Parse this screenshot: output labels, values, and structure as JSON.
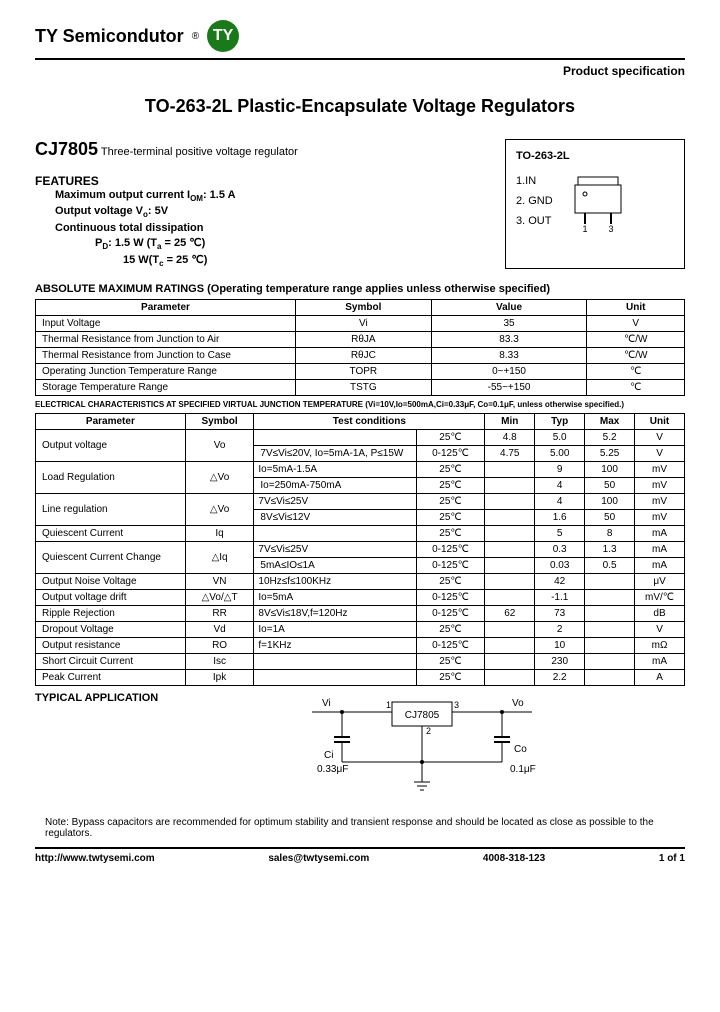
{
  "header": {
    "company": "TY Semicondutor",
    "logo_text": "TY",
    "logo_bg": "#1a7a1a",
    "spec_label": "Product specification"
  },
  "title": "TO-263-2L Plastic-Encapsulate Voltage Regulators",
  "part": {
    "number": "CJ7805",
    "desc": "Three-terminal positive voltage regulator"
  },
  "features": {
    "head": "FEATURES",
    "l1": "Maximum output current   I",
    "l1sub": "OM",
    "l1end": ": 1.5 A",
    "l2": "Output voltage V",
    "l2sub": "o",
    "l2end": ": 5V",
    "l3": "Continuous total dissipation",
    "l4": "P",
    "l4sub": "D",
    "l4end": ":   1.5  W (T",
    "l4sub2": "a",
    "l4end2": " = 25 ℃)",
    "l5": "15 W(T",
    "l5sub": "c",
    "l5end": " = 25 ℃)"
  },
  "package": {
    "title": "TO-263-2L",
    "pin1": "1.IN",
    "pin2": "2. GND",
    "pin3": "3. OUT",
    "pin_lbl1": "1",
    "pin_lbl3": "3"
  },
  "abs_max": {
    "head": "ABSOLUTE MAXIMUM RATINGS (Operating temperature range applies unless otherwise specified)",
    "cols": [
      "Parameter",
      "Symbol",
      "Value",
      "Unit"
    ],
    "rows": [
      [
        "Input Voltage",
        "Vi",
        "35",
        "V"
      ],
      [
        "Thermal Resistance from Junction to Air",
        "RθJA",
        "83.3",
        "℃/W"
      ],
      [
        "Thermal Resistance from Junction to Case",
        "RθJC",
        "8.33",
        "℃/W"
      ],
      [
        "Operating Junction Temperature Range",
        "TOPR",
        "0~+150",
        "℃"
      ],
      [
        "Storage Temperature Range",
        "TSTG",
        "-55~+150",
        "℃"
      ]
    ]
  },
  "elec_note": "ELECTRICAL CHARACTERISTICS AT SPECIFIED VIRTUAL JUNCTION TEMPERATURE (Vi=10V,Io=500mA,Ci=0.33μF, Co=0.1μF, unless otherwise specified.)",
  "elec": {
    "cols": [
      "Parameter",
      "Symbol",
      "Test conditions",
      "",
      "Min",
      "Typ",
      "Max",
      "Unit"
    ],
    "rows": [
      {
        "param": "Output voltage",
        "sym": "Vo",
        "cond1": "",
        "cond2": "25℃",
        "min": "4.8",
        "typ": "5.0",
        "max": "5.2",
        "unit": "V",
        "rowspan": 2
      },
      {
        "cond1": "7V≤Vi≤20V, Io=5mA-1A, P≤15W",
        "cond2": "0-125℃",
        "min": "4.75",
        "typ": "5.00",
        "max": "5.25",
        "unit": "V"
      },
      {
        "param": "Load Regulation",
        "sym": "△Vo",
        "cond1": "Io=5mA-1.5A",
        "cond2": "25℃",
        "min": "",
        "typ": "9",
        "max": "100",
        "unit": "mV",
        "rowspan": 2
      },
      {
        "cond1": "Io=250mA-750mA",
        "cond2": "25℃",
        "min": "",
        "typ": "4",
        "max": "50",
        "unit": "mV"
      },
      {
        "param": "Line regulation",
        "sym": "△Vo",
        "cond1": "7V≤Vi≤25V",
        "cond2": "25℃",
        "min": "",
        "typ": "4",
        "max": "100",
        "unit": "mV",
        "rowspan": 2
      },
      {
        "cond1": "8V≤Vi≤12V",
        "cond2": "25℃",
        "min": "",
        "typ": "1.6",
        "max": "50",
        "unit": "mV"
      },
      {
        "param": "Quiescent Current",
        "sym": "Iq",
        "cond1": "",
        "cond2": "25℃",
        "min": "",
        "typ": "5",
        "max": "8",
        "unit": "mA"
      },
      {
        "param": "Quiescent Current Change",
        "sym": "△Iq",
        "cond1": "7V≤Vi≤25V",
        "cond2": "0-125℃",
        "min": "",
        "typ": "0.3",
        "max": "1.3",
        "unit": "mA",
        "rowspan": 2
      },
      {
        "cond1": "5mA≤IO≤1A",
        "cond2": "0-125℃",
        "min": "",
        "typ": "0.03",
        "max": "0.5",
        "unit": "mA"
      },
      {
        "param": "Output Noise Voltage",
        "sym": "VN",
        "cond1": "10Hz≤f≤100KHz",
        "cond2": "25℃",
        "min": "",
        "typ": "42",
        "max": "",
        "unit": "μV"
      },
      {
        "param": "Output voltage drift",
        "sym": "△Vo/△T",
        "cond1": "Io=5mA",
        "cond2": "0-125℃",
        "min": "",
        "typ": "-1.1",
        "max": "",
        "unit": "mV/℃"
      },
      {
        "param": "Ripple Rejection",
        "sym": "RR",
        "cond1": "8V≤Vi≤18V,f=120Hz",
        "cond2": "0-125℃",
        "min": "62",
        "typ": "73",
        "max": "",
        "unit": "dB"
      },
      {
        "param": "Dropout Voltage",
        "sym": "Vd",
        "cond1": "Io=1A",
        "cond2": "25℃",
        "min": "",
        "typ": "2",
        "max": "",
        "unit": "V"
      },
      {
        "param": "Output resistance",
        "sym": "RO",
        "cond1": "f=1KHz",
        "cond2": "0-125℃",
        "min": "",
        "typ": "10",
        "max": "",
        "unit": "mΩ"
      },
      {
        "param": "Short Circuit Current",
        "sym": "Isc",
        "cond1": "",
        "cond2": "25℃",
        "min": "",
        "typ": "230",
        "max": "",
        "unit": "mA"
      },
      {
        "param": "Peak Current",
        "sym": "Ipk",
        "cond1": "",
        "cond2": "25℃",
        "min": "",
        "typ": "2.2",
        "max": "",
        "unit": "A"
      }
    ]
  },
  "app": {
    "head": "TYPICAL APPLICATION",
    "vi": "Vi",
    "vo": "Vo",
    "p1": "1",
    "p2": "2",
    "p3": "3",
    "chip": "CJ7805",
    "ci": "Ci",
    "ci_val": "0.33μF",
    "co": "Co",
    "co_val": "0.1μF"
  },
  "note": "Note: Bypass capacitors are recommended for optimum stability and transient response and should be located as close as possible to the regulators.",
  "footer": {
    "url": "http://www.twtysemi.com",
    "email": "sales@twtysemi.com",
    "phone": "4008-318-123",
    "page": "1 of 1"
  }
}
